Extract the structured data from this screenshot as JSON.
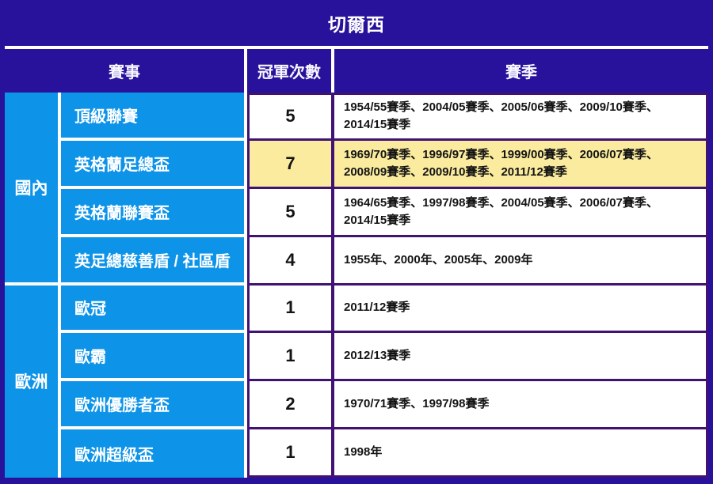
{
  "title": "切爾西",
  "header": {
    "event": "賽事",
    "count": "冠軍次數",
    "season": "賽季"
  },
  "groups": [
    {
      "label": "國內",
      "rows": [
        {
          "competition": "頂級聯賽",
          "count": "5",
          "seasons": "1954/55賽季、2004/05賽季、2005/06賽季、2009/10賽季、2014/15賽季",
          "highlight": false
        },
        {
          "competition": "英格蘭足總盃",
          "count": "7",
          "seasons": "1969/70賽季、1996/97賽季、1999/00賽季、2006/07賽季、2008/09賽季、2009/10賽季、2011/12賽季",
          "highlight": true
        },
        {
          "competition": "英格蘭聯賽盃",
          "count": "5",
          "seasons": "1964/65賽季、1997/98賽季、2004/05賽季、2006/07賽季、2014/15賽季",
          "highlight": false
        },
        {
          "competition": "英足總慈善盾 / 社區盾",
          "count": "4",
          "seasons": "1955年、2000年、2005年、2009年",
          "highlight": false
        }
      ]
    },
    {
      "label": "歐洲",
      "rows": [
        {
          "competition": "歐冠",
          "count": "1",
          "seasons": "2011/12賽季",
          "highlight": false
        },
        {
          "competition": "歐霸",
          "count": "1",
          "seasons": "2012/13賽季",
          "highlight": false
        },
        {
          "competition": "歐洲優勝者盃",
          "count": "2",
          "seasons": "1970/71賽季、1997/98賽季",
          "highlight": false
        },
        {
          "competition": "歐洲超級盃",
          "count": "1",
          "seasons": "1998年",
          "highlight": false
        }
      ]
    }
  ],
  "colors": {
    "navy": "#28129b",
    "blue": "#0d93e8",
    "highlight": "#faeb9e",
    "border_purple": "#3f1274",
    "cell_white": "#ffffff",
    "text_dark": "#141414"
  }
}
